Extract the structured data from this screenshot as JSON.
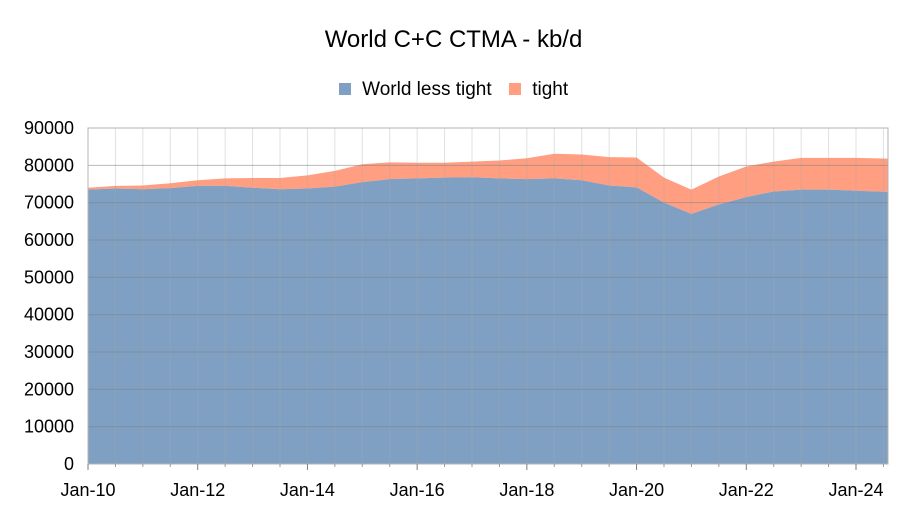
{
  "chart_data": {
    "type": "area",
    "stacked": true,
    "title": "World C+C CTMA - kb/d",
    "xlabel": "",
    "ylabel": "",
    "ylim": [
      0,
      90000
    ],
    "yticks": [
      0,
      10000,
      20000,
      30000,
      40000,
      50000,
      60000,
      70000,
      80000,
      90000
    ],
    "xlim": [
      "2010-01",
      "2024-08"
    ],
    "xticks": [
      "Jan-10",
      "Jan-12",
      "Jan-14",
      "Jan-16",
      "Jan-18",
      "Jan-20",
      "Jan-22",
      "Jan-24"
    ],
    "legend_position": "top",
    "grid": true,
    "x": [
      "2010-01",
      "2010-07",
      "2011-01",
      "2011-07",
      "2012-01",
      "2012-07",
      "2013-01",
      "2013-07",
      "2014-01",
      "2014-07",
      "2015-01",
      "2015-07",
      "2016-01",
      "2016-07",
      "2017-01",
      "2017-07",
      "2018-01",
      "2018-07",
      "2019-01",
      "2019-07",
      "2020-01",
      "2020-07",
      "2021-01",
      "2021-07",
      "2022-01",
      "2022-07",
      "2023-01",
      "2023-07",
      "2024-01",
      "2024-08"
    ],
    "series": [
      {
        "name": "World less tight",
        "color": "#7fa0c3",
        "values": [
          73500,
          73800,
          73600,
          73900,
          74500,
          74500,
          74000,
          73600,
          73800,
          74300,
          75500,
          76300,
          76500,
          76700,
          76800,
          76500,
          76300,
          76500,
          76000,
          74600,
          74100,
          70000,
          67000,
          69500,
          71500,
          73000,
          73500,
          73500,
          73200,
          72900
        ]
      },
      {
        "name": "tight",
        "color": "#ff9e80",
        "values": [
          500,
          700,
          1000,
          1300,
          1500,
          2000,
          2600,
          3000,
          3500,
          4200,
          4800,
          4500,
          4200,
          4000,
          4200,
          4800,
          5600,
          6600,
          6900,
          7600,
          8000,
          6700,
          6500,
          7500,
          8200,
          8000,
          8500,
          8500,
          8800,
          8900
        ]
      }
    ]
  }
}
